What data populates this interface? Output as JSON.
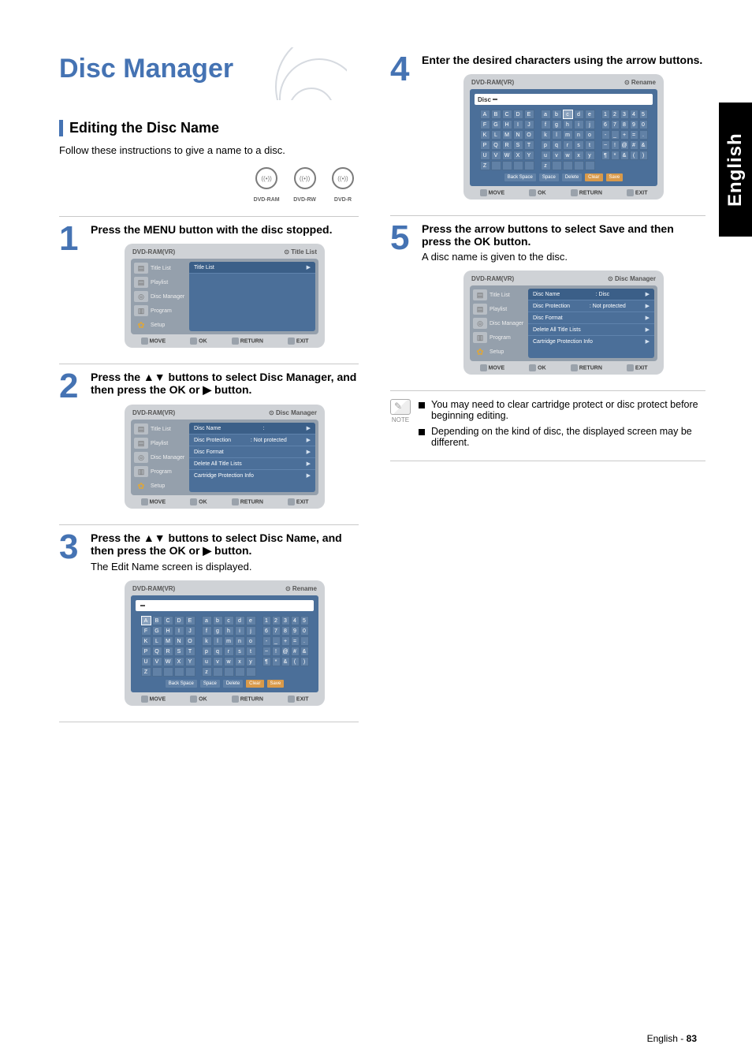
{
  "page": {
    "title": "Disc Manager",
    "section_heading": "Editing the Disc Name",
    "intro": "Follow these instructions to give a name to a disc.",
    "language_tab": "English",
    "footer_lang": "English",
    "footer_sep": " - ",
    "footer_page": "83"
  },
  "disc_badges": [
    {
      "glyph": "((•))",
      "label": "DVD-RAM"
    },
    {
      "glyph": "((•))",
      "label": "DVD-RW"
    },
    {
      "glyph": "((•))",
      "label": "DVD-R"
    }
  ],
  "steps": {
    "s1": {
      "num": "1",
      "text": "Press the MENU button with the disc stopped."
    },
    "s2": {
      "num": "2",
      "text": "Press the ▲▼ buttons to select Disc Manager, and then press the OK or ▶ button."
    },
    "s3": {
      "num": "3",
      "text": "Press the ▲▼ buttons to select Disc Name, and then press the OK or ▶ button.",
      "sub": "The Edit Name screen is displayed."
    },
    "s4": {
      "num": "4",
      "text": "Enter the desired characters using the arrow buttons."
    },
    "s5": {
      "num": "5",
      "text": "Press the arrow buttons to select Save and then press the OK button.",
      "sub": "A disc name is given to the disc."
    }
  },
  "ui": {
    "device": "DVD-RAM(VR)",
    "ctx_titlelist": "⊙  Title List",
    "ctx_discmgr": "⊙  Disc Manager",
    "ctx_rename": "⊙  Rename",
    "sidebar": {
      "title_list": "Title List",
      "playlist": "Playlist",
      "disc_manager": "Disc Manager",
      "program": "Program",
      "setup": "Setup"
    },
    "rows": {
      "title_list": "Title List",
      "disc_name": "Disc Name",
      "disc_name_val_empty": ":",
      "disc_name_val": ": Disc",
      "disc_protection": "Disc Protection",
      "disc_protection_val": ": Not protected",
      "disc_format": "Disc Format",
      "delete_all": "Delete All Title Lists",
      "cart_info": "Cartridge Protection Info"
    },
    "foot": {
      "move": "MOVE",
      "ok": "OK",
      "return": "RETURN",
      "exit": "EXIT"
    },
    "entry_disc": "Disc",
    "kb": {
      "upper": [
        "A",
        "B",
        "C",
        "D",
        "E",
        "F",
        "G",
        "H",
        "I",
        "J",
        "K",
        "L",
        "M",
        "N",
        "O",
        "P",
        "Q",
        "R",
        "S",
        "T",
        "U",
        "V",
        "W",
        "X",
        "Y",
        "Z",
        "",
        "",
        "",
        ""
      ],
      "lower": [
        "a",
        "b",
        "c",
        "d",
        "e",
        "f",
        "g",
        "h",
        "i",
        "j",
        "k",
        "l",
        "m",
        "n",
        "o",
        "p",
        "q",
        "r",
        "s",
        "t",
        "u",
        "v",
        "w",
        "x",
        "y",
        "z",
        "",
        "",
        "",
        ""
      ],
      "sym": [
        "1",
        "2",
        "3",
        "4",
        "5",
        "6",
        "7",
        "8",
        "9",
        "0",
        "-",
        "_",
        "+",
        "=",
        ".",
        "~",
        "!",
        "@",
        "#",
        "&",
        "¶",
        "*",
        "&",
        "(",
        ")"
      ],
      "btns": {
        "back": "Back Space",
        "space": "Space",
        "delete": "Delete",
        "clear": "Clear",
        "save": "Save"
      }
    }
  },
  "notes": {
    "label": "NOTE",
    "items": [
      "You may need to clear cartridge protect or disc protect before beginning editing.",
      "Depending on the kind of disc, the displayed screen may be different."
    ]
  }
}
